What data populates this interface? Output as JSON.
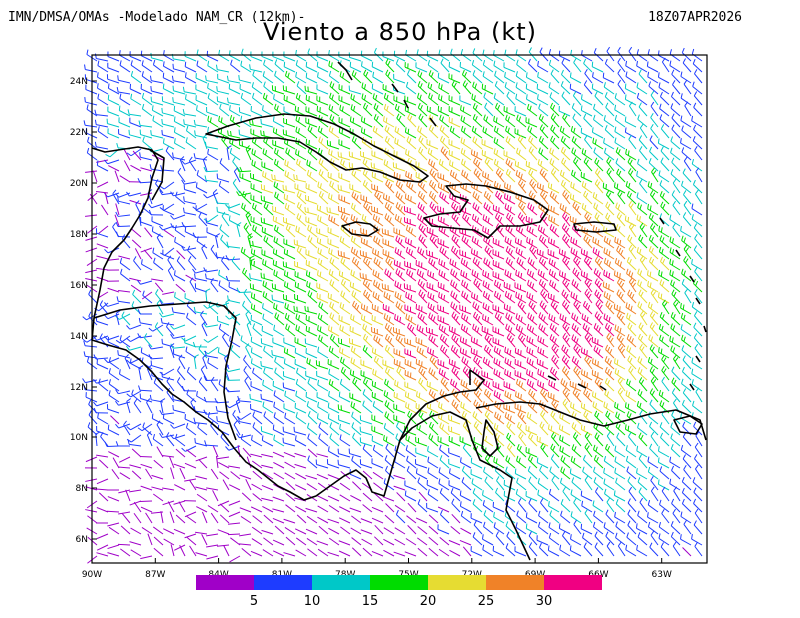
{
  "header": {
    "source": "IMN/DMSA/OMAs -Modelado NAM_CR (12km)-",
    "datetime": "18Z07APR2026",
    "title": "Viento a 850 hPa (kt)"
  },
  "map": {
    "lat_labels": [
      "24N",
      "22N",
      "20N",
      "18N",
      "16N",
      "14N",
      "12N",
      "10N",
      "8N",
      "6N"
    ],
    "lon_labels": [
      "90W",
      "87W",
      "84W",
      "81W",
      "78W",
      "75W",
      "72W",
      "69W",
      "66W",
      "63W"
    ],
    "lat_range": [
      5,
      25
    ],
    "lon_range": [
      -90,
      -61
    ],
    "coastline_color": "#000000",
    "field": "wind_barbs_850hPa"
  },
  "colorbar": {
    "colors": [
      "#a000c8",
      "#1e3cff",
      "#00c8c8",
      "#00dc00",
      "#e6dc32",
      "#f08228",
      "#f00082"
    ],
    "labels": [
      "5",
      "10",
      "15",
      "20",
      "25",
      "30"
    ]
  }
}
